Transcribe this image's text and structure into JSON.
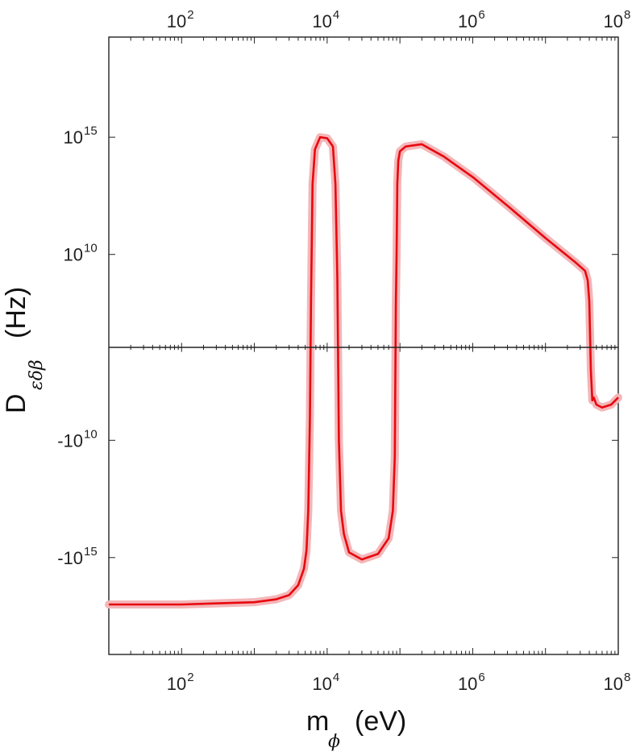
{
  "chart_data": {
    "type": "line",
    "x_scale": "log",
    "y_scale": "symmetric-log",
    "xlim": [
      10,
      100000000
    ],
    "x_ticks": [
      {
        "base": "10",
        "exp": "2"
      },
      {
        "base": "10",
        "exp": "4"
      },
      {
        "base": "10",
        "exp": "6"
      },
      {
        "base": "10",
        "exp": "8"
      }
    ],
    "y_ticks": [
      {
        "base": "10",
        "exp": "15",
        "value": 1000000000000000.0
      },
      {
        "base": "10",
        "exp": "10",
        "value": 10000000000.0
      },
      {
        "base": "-10",
        "exp": "10",
        "value": -10000000000.0
      },
      {
        "base": "-10",
        "exp": "15",
        "value": -1000000000000000.0
      }
    ],
    "xlabel": {
      "main": "m",
      "sub": "ϕ",
      "unit": "(eV)"
    },
    "ylabel": {
      "main": "D",
      "sub": "εδβ",
      "unit": "(Hz)"
    },
    "grid": false,
    "line_color": "#e8080f",
    "band_color": "#f4b6b8",
    "series": [
      {
        "x": [
          10,
          100,
          1000,
          2000,
          3000,
          4000,
          4800,
          5200,
          5500,
          5800,
          6000,
          6300,
          6800,
          8000,
          10000,
          12000,
          13000,
          13800,
          14500,
          15500,
          17000,
          20000,
          30000,
          50000,
          70000,
          80000,
          85000,
          88000,
          90000,
          92000,
          95000,
          100000,
          120000,
          200000,
          400000,
          1000000,
          3000000,
          10000000,
          25000000,
          35000000,
          38000000,
          40000000,
          42000000,
          44000000,
          46000000,
          50000000,
          60000000,
          80000000,
          100000000
        ],
        "y": [
          -1e+17,
          -1e+17,
          -8e+16,
          -6e+16,
          -4e+16,
          -1.5e+16,
          -3000000000000000.0,
          -500000000000000.0,
          -10000000000000.0,
          -1000000000.0,
          100000000.0,
          10000000000000.0,
          300000000000000.0,
          1000000000000000.0,
          900000000000000.0,
          400000000000000.0,
          10000000000000.0,
          1000000000.0,
          -10000000000.0,
          -10000000000000.0,
          -100000000000000.0,
          -600000000000000.0,
          -1200000000000000.0,
          -700000000000000.0,
          -150000000000000.0,
          -10000000000000.0,
          -50000000000.0,
          100000000.0,
          10000000000.0,
          10000000000000.0,
          100000000000000.0,
          250000000000000.0,
          400000000000000.0,
          500000000000000.0,
          150000000000000.0,
          20000000000000.0,
          1200000000000.0,
          50000000000.0,
          5000000000.0,
          2000000000.0,
          800000000.0,
          100000000.0,
          -10000000.0,
          -200000000.0,
          -150000000.0,
          -300000000.0,
          -400000000.0,
          -300000000.0,
          -150000000.0
        ]
      }
    ]
  }
}
